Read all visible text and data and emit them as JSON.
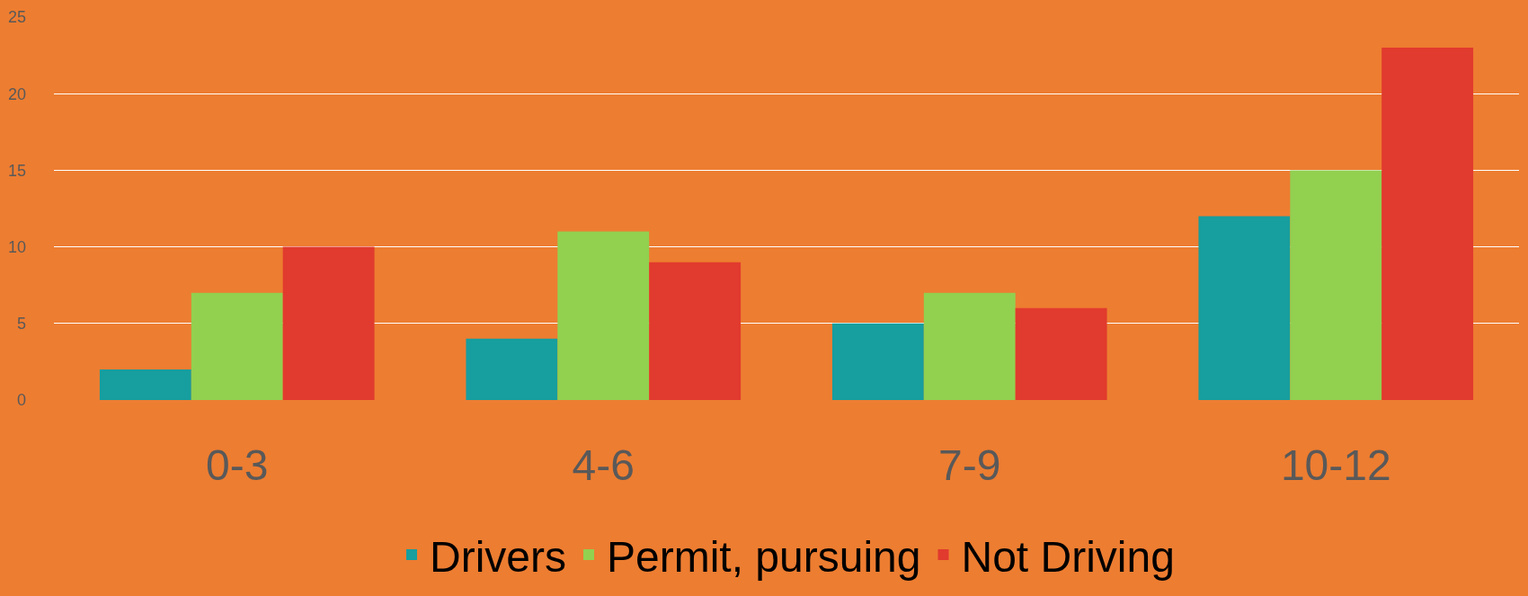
{
  "chart_data": {
    "type": "bar",
    "categories": [
      "0-3",
      "4-6",
      "7-9",
      "10-12"
    ],
    "series": [
      {
        "name": "Drivers",
        "color": "#179e9e",
        "values": [
          2,
          4,
          5,
          12
        ]
      },
      {
        "name": "Permit, pursuing",
        "color": "#92d050",
        "values": [
          7,
          11,
          7,
          15
        ]
      },
      {
        "name": "Not Driving",
        "color": "#e13a2e",
        "values": [
          10,
          9,
          6,
          23
        ]
      }
    ],
    "ylim": [
      0,
      25
    ],
    "yticks": [
      0,
      5,
      10,
      15,
      20,
      25
    ],
    "grid": "y",
    "legend": "bottom"
  }
}
